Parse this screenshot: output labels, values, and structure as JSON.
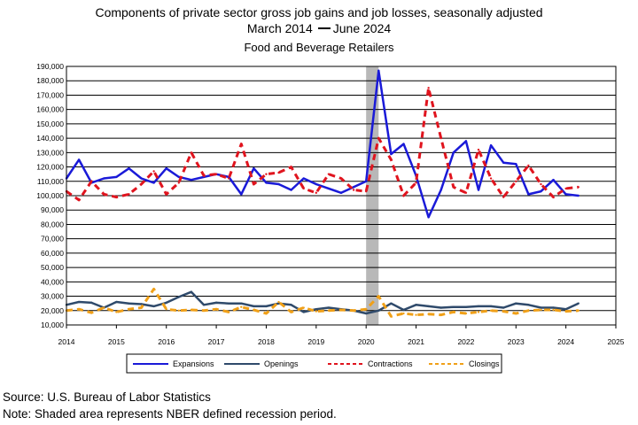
{
  "title": "Components of private sector gross job gains and job losses, seasonally adjusted",
  "subtitle_start": "March 2014",
  "subtitle_end": "June 2024",
  "sector": "Food and Beverage Retailers",
  "source": "Source: U.S. Bureau of Labor Statistics",
  "note": "Note: Shaded area represents NBER defined recession period.",
  "colors": {
    "expansions": "#1a1ad8",
    "openings": "#2f4a6b",
    "contractions": "#e0141e",
    "closings": "#f0a018",
    "recession": "#b8b8b8"
  },
  "chart_data": {
    "type": "line",
    "title": "Components of private sector gross job gains and job losses, seasonally adjusted",
    "xlim": [
      2014,
      2025
    ],
    "ylim": [
      10000,
      190000
    ],
    "xticks": [
      "2014",
      "2015",
      "2016",
      "2017",
      "2018",
      "2019",
      "2020",
      "2021",
      "2022",
      "2023",
      "2024",
      "2025"
    ],
    "yticks": [
      "10,000",
      "20,000",
      "30,000",
      "40,000",
      "50,000",
      "60,000",
      "70,000",
      "80,000",
      "90,000",
      "100,000",
      "110,000",
      "120,000",
      "130,000",
      "140,000",
      "150,000",
      "160,000",
      "170,000",
      "180,000",
      "190,000"
    ],
    "grid": "horizontal",
    "legend_position": "bottom",
    "recession_band": [
      2020.0,
      2020.25
    ],
    "x": [
      2014.0,
      2014.25,
      2014.5,
      2014.75,
      2015.0,
      2015.25,
      2015.5,
      2015.75,
      2016.0,
      2016.25,
      2016.5,
      2016.75,
      2017.0,
      2017.25,
      2017.5,
      2017.75,
      2018.0,
      2018.25,
      2018.5,
      2018.75,
      2019.0,
      2019.25,
      2019.5,
      2019.75,
      2020.0,
      2020.25,
      2020.5,
      2020.75,
      2021.0,
      2021.25,
      2021.5,
      2021.75,
      2022.0,
      2022.25,
      2022.5,
      2022.75,
      2023.0,
      2023.25,
      2023.5,
      2023.75,
      2024.0,
      2024.25
    ],
    "series": [
      {
        "name": "Expansions",
        "style": "solid",
        "values": [
          112000,
          125000,
          109000,
          112000,
          113000,
          119000,
          112000,
          109000,
          119000,
          113000,
          111000,
          113000,
          115000,
          113000,
          101000,
          119000,
          109000,
          108000,
          104000,
          112000,
          108000,
          105000,
          102000,
          106000,
          110000,
          187000,
          129000,
          136000,
          114000,
          85000,
          104000,
          130000,
          138000,
          104000,
          135000,
          123000,
          122000,
          101000,
          103000,
          111000,
          101000,
          100000
        ]
      },
      {
        "name": "Openings",
        "style": "solid",
        "values": [
          24000,
          26000,
          25500,
          22000,
          26000,
          25000,
          24500,
          23000,
          25500,
          29500,
          33000,
          24000,
          25500,
          25000,
          25000,
          23000,
          23000,
          25000,
          24000,
          19000,
          21000,
          22000,
          21000,
          20000,
          18000,
          20000,
          25000,
          20500,
          24000,
          23000,
          22000,
          22500,
          22500,
          23000,
          23000,
          22000,
          25000,
          24000,
          22000,
          22000,
          21000,
          25000
        ]
      },
      {
        "name": "Contractions",
        "style": "dashed",
        "values": [
          103000,
          97000,
          110000,
          101000,
          99000,
          101000,
          108000,
          117000,
          101000,
          109000,
          130000,
          114000,
          115000,
          112000,
          136000,
          108000,
          115000,
          116000,
          120000,
          105000,
          102000,
          115000,
          112000,
          104000,
          103000,
          140000,
          125000,
          100000,
          109000,
          175000,
          140000,
          106000,
          102000,
          132000,
          112000,
          99000,
          110000,
          121000,
          108000,
          99000,
          105000,
          106000
        ]
      },
      {
        "name": "Closings",
        "style": "dashed",
        "values": [
          20000,
          21000,
          18500,
          22000,
          19000,
          21000,
          22000,
          35000,
          21000,
          20000,
          20500,
          20000,
          21000,
          19000,
          22500,
          20500,
          18000,
          26000,
          19000,
          22000,
          19500,
          20000,
          20500,
          20000,
          21000,
          30000,
          16000,
          18000,
          17000,
          17500,
          17000,
          19000,
          18000,
          19000,
          20000,
          19500,
          18000,
          20000,
          20500,
          20500,
          19500,
          20000
        ]
      }
    ]
  }
}
